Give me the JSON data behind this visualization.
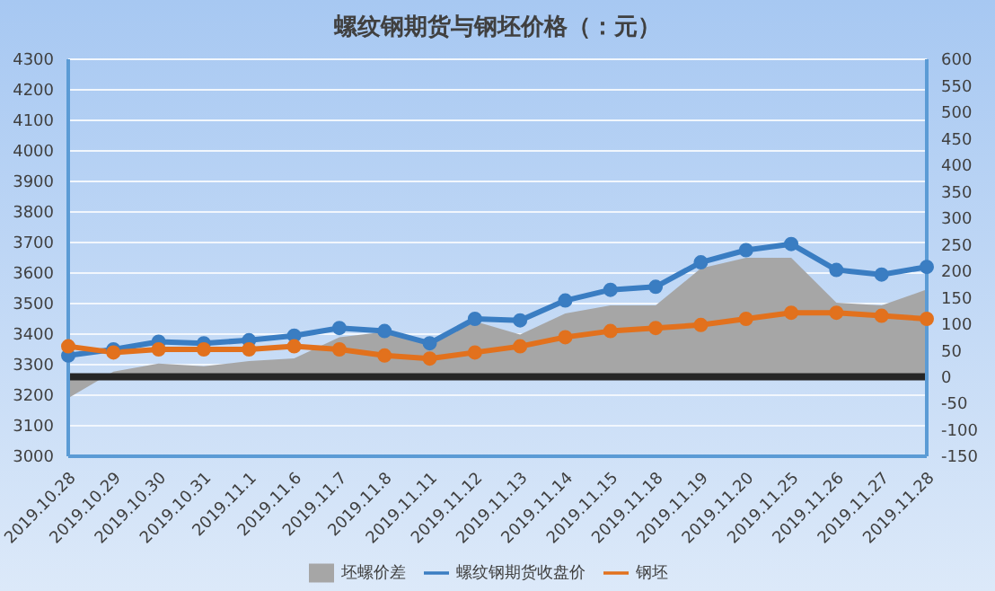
{
  "chart_data": {
    "type": "line",
    "title": "螺纹钢期货与钢坯价格（：元）",
    "categories": [
      "2019.10.28",
      "2019.10.29",
      "2019.10.30",
      "2019.10.31",
      "2019.11.1",
      "2019.11.6",
      "2019.11.7",
      "2019.11.8",
      "2019.11.11",
      "2019.11.12",
      "2019.11.13",
      "2019.11.14",
      "2019.11.15",
      "2019.11.18",
      "2019.11.19",
      "2019.11.20",
      "2019.11.25",
      "2019.11.26",
      "2019.11.27",
      "2019.11.28"
    ],
    "series": [
      {
        "name": "坯螺价差",
        "type": "area",
        "marker": "none",
        "axis": "y2",
        "color": "#a6a6a6",
        "values": [
          -40,
          10,
          25,
          20,
          30,
          35,
          75,
          85,
          65,
          105,
          80,
          120,
          135,
          135,
          205,
          225,
          225,
          140,
          135,
          165
        ]
      },
      {
        "name": "螺纹钢期货收盘价",
        "color": "#3a7dc2",
        "values": [
          3330,
          3350,
          3375,
          3370,
          3380,
          3395,
          3420,
          3410,
          3370,
          3450,
          3445,
          3510,
          3545,
          3555,
          3635,
          3675,
          3695,
          3610,
          3595,
          3620
        ]
      },
      {
        "name": "钢坯",
        "color": "#e2711d",
        "values": [
          3360,
          3340,
          3350,
          3350,
          3350,
          3360,
          3350,
          3330,
          3320,
          3340,
          3360,
          3390,
          3410,
          3420,
          3430,
          3450,
          3470,
          3470,
          3460,
          3450
        ]
      }
    ],
    "ylim": [
      3000,
      4300
    ],
    "yticks": [
      3000,
      3100,
      3200,
      3300,
      3400,
      3500,
      3600,
      3700,
      3800,
      3900,
      4000,
      4100,
      4200,
      4300
    ],
    "y2lim": [
      -150,
      600
    ],
    "y2ticks": [
      -150,
      -100,
      -50,
      0,
      50,
      100,
      150,
      200,
      250,
      300,
      350,
      400,
      450,
      500,
      550,
      600
    ],
    "ref_lines": [
      {
        "axis": "y2",
        "value": 0,
        "color": "#262626"
      }
    ],
    "grid": "y",
    "legend": "bottom",
    "marker": "circle"
  }
}
